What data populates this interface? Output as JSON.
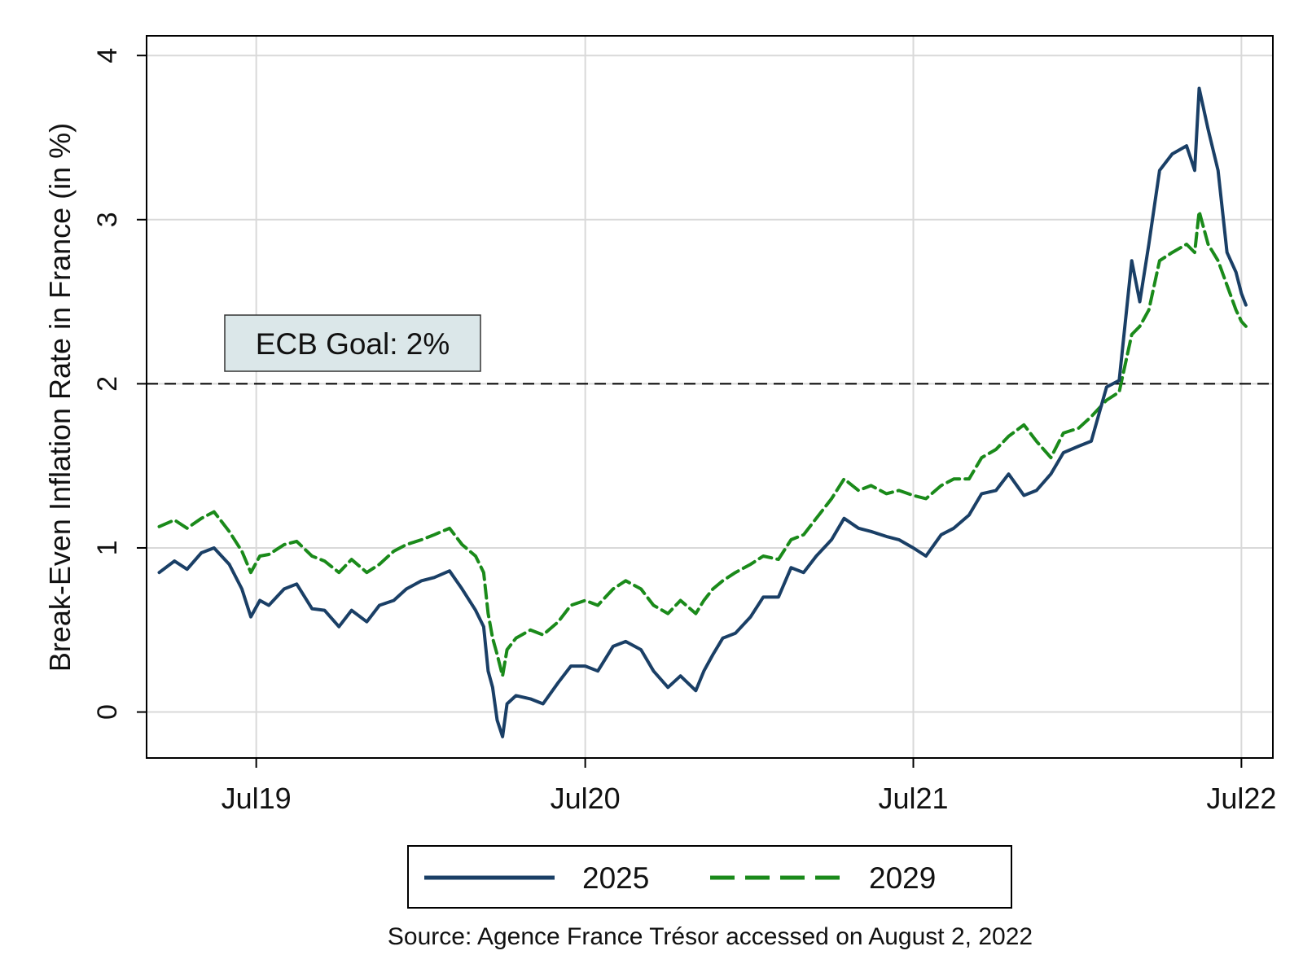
{
  "chart_data": {
    "type": "line",
    "title": "",
    "xlabel": "",
    "ylabel": "Break-Even Inflation Rate in France (in %)",
    "ylim": [
      -0.28,
      4.12
    ],
    "xlim": [
      "2019-03-01",
      "2022-08-05"
    ],
    "grid": true,
    "y_ticks": [
      "0",
      "1",
      "2",
      "3",
      "4"
    ],
    "x_ticks": [
      {
        "date": "2019-07-01",
        "label": "Jul19"
      },
      {
        "date": "2020-07-01",
        "label": "Jul20"
      },
      {
        "date": "2021-07-01",
        "label": "Jul21"
      },
      {
        "date": "2022-07-01",
        "label": "Jul22"
      }
    ],
    "reference_line": {
      "y": 2,
      "style": "dashed",
      "color": "#000000"
    },
    "annotation": {
      "text": "ECB Goal: 2%",
      "color": "#006400",
      "background": "#dbe7e9"
    },
    "legend": {
      "placement": "bottom",
      "entries": [
        "2025",
        "2029"
      ]
    },
    "source_note": "Source: Agence France Trésor accessed on August 2, 2022",
    "series": [
      {
        "name": "2025",
        "color": "#1a3f66",
        "style": "solid",
        "points": [
          [
            "2019-03-15",
            0.85
          ],
          [
            "2019-04-01",
            0.92
          ],
          [
            "2019-04-15",
            0.87
          ],
          [
            "2019-05-01",
            0.97
          ],
          [
            "2019-05-15",
            1.0
          ],
          [
            "2019-06-01",
            0.9
          ],
          [
            "2019-06-15",
            0.75
          ],
          [
            "2019-06-25",
            0.58
          ],
          [
            "2019-07-05",
            0.68
          ],
          [
            "2019-07-15",
            0.65
          ],
          [
            "2019-08-01",
            0.75
          ],
          [
            "2019-08-15",
            0.78
          ],
          [
            "2019-09-01",
            0.63
          ],
          [
            "2019-09-15",
            0.62
          ],
          [
            "2019-10-01",
            0.52
          ],
          [
            "2019-10-15",
            0.62
          ],
          [
            "2019-11-01",
            0.55
          ],
          [
            "2019-11-15",
            0.65
          ],
          [
            "2019-12-01",
            0.68
          ],
          [
            "2019-12-15",
            0.75
          ],
          [
            "2020-01-01",
            0.8
          ],
          [
            "2020-01-15",
            0.82
          ],
          [
            "2020-02-01",
            0.86
          ],
          [
            "2020-02-15",
            0.75
          ],
          [
            "2020-03-01",
            0.62
          ],
          [
            "2020-03-10",
            0.52
          ],
          [
            "2020-03-15",
            0.25
          ],
          [
            "2020-03-20",
            0.15
          ],
          [
            "2020-03-25",
            -0.05
          ],
          [
            "2020-03-31",
            -0.15
          ],
          [
            "2020-04-05",
            0.05
          ],
          [
            "2020-04-15",
            0.1
          ],
          [
            "2020-05-01",
            0.08
          ],
          [
            "2020-05-15",
            0.05
          ],
          [
            "2020-06-01",
            0.18
          ],
          [
            "2020-06-15",
            0.28
          ],
          [
            "2020-07-01",
            0.28
          ],
          [
            "2020-07-15",
            0.25
          ],
          [
            "2020-08-01",
            0.4
          ],
          [
            "2020-08-15",
            0.43
          ],
          [
            "2020-09-01",
            0.38
          ],
          [
            "2020-09-15",
            0.25
          ],
          [
            "2020-10-01",
            0.15
          ],
          [
            "2020-10-15",
            0.22
          ],
          [
            "2020-11-01",
            0.13
          ],
          [
            "2020-11-10",
            0.25
          ],
          [
            "2020-11-20",
            0.35
          ],
          [
            "2020-12-01",
            0.45
          ],
          [
            "2020-12-15",
            0.48
          ],
          [
            "2021-01-01",
            0.58
          ],
          [
            "2021-01-15",
            0.7
          ],
          [
            "2021-02-01",
            0.7
          ],
          [
            "2021-02-15",
            0.88
          ],
          [
            "2021-03-01",
            0.85
          ],
          [
            "2021-03-15",
            0.95
          ],
          [
            "2021-04-01",
            1.05
          ],
          [
            "2021-04-15",
            1.18
          ],
          [
            "2021-05-01",
            1.12
          ],
          [
            "2021-05-15",
            1.1
          ],
          [
            "2021-06-01",
            1.07
          ],
          [
            "2021-06-15",
            1.05
          ],
          [
            "2021-07-01",
            1.0
          ],
          [
            "2021-07-15",
            0.95
          ],
          [
            "2021-08-01",
            1.08
          ],
          [
            "2021-08-15",
            1.12
          ],
          [
            "2021-09-01",
            1.2
          ],
          [
            "2021-09-15",
            1.33
          ],
          [
            "2021-10-01",
            1.35
          ],
          [
            "2021-10-15",
            1.45
          ],
          [
            "2021-11-01",
            1.32
          ],
          [
            "2021-11-15",
            1.35
          ],
          [
            "2021-12-01",
            1.45
          ],
          [
            "2021-12-15",
            1.58
          ],
          [
            "2022-01-01",
            1.62
          ],
          [
            "2022-01-15",
            1.65
          ],
          [
            "2022-02-01",
            1.98
          ],
          [
            "2022-02-15",
            2.02
          ],
          [
            "2022-03-01",
            2.75
          ],
          [
            "2022-03-10",
            2.5
          ],
          [
            "2022-03-20",
            2.85
          ],
          [
            "2022-04-01",
            3.3
          ],
          [
            "2022-04-15",
            3.4
          ],
          [
            "2022-05-01",
            3.45
          ],
          [
            "2022-05-10",
            3.3
          ],
          [
            "2022-05-15",
            3.8
          ],
          [
            "2022-05-25",
            3.55
          ],
          [
            "2022-06-05",
            3.3
          ],
          [
            "2022-06-15",
            2.8
          ],
          [
            "2022-06-25",
            2.68
          ],
          [
            "2022-07-01",
            2.55
          ],
          [
            "2022-07-06",
            2.48
          ]
        ]
      },
      {
        "name": "2029",
        "color": "#1a8a1a",
        "style": "dashed",
        "points": [
          [
            "2019-03-15",
            1.13
          ],
          [
            "2019-04-01",
            1.17
          ],
          [
            "2019-04-15",
            1.12
          ],
          [
            "2019-05-01",
            1.18
          ],
          [
            "2019-05-15",
            1.22
          ],
          [
            "2019-06-01",
            1.1
          ],
          [
            "2019-06-15",
            0.98
          ],
          [
            "2019-06-25",
            0.85
          ],
          [
            "2019-07-05",
            0.95
          ],
          [
            "2019-07-15",
            0.96
          ],
          [
            "2019-08-01",
            1.02
          ],
          [
            "2019-08-15",
            1.04
          ],
          [
            "2019-09-01",
            0.95
          ],
          [
            "2019-09-15",
            0.92
          ],
          [
            "2019-10-01",
            0.85
          ],
          [
            "2019-10-15",
            0.93
          ],
          [
            "2019-11-01",
            0.85
          ],
          [
            "2019-11-15",
            0.9
          ],
          [
            "2019-12-01",
            0.98
          ],
          [
            "2019-12-15",
            1.02
          ],
          [
            "2020-01-01",
            1.05
          ],
          [
            "2020-01-15",
            1.08
          ],
          [
            "2020-02-01",
            1.12
          ],
          [
            "2020-02-15",
            1.02
          ],
          [
            "2020-03-01",
            0.95
          ],
          [
            "2020-03-10",
            0.85
          ],
          [
            "2020-03-15",
            0.6
          ],
          [
            "2020-03-20",
            0.45
          ],
          [
            "2020-03-25",
            0.35
          ],
          [
            "2020-03-31",
            0.22
          ],
          [
            "2020-04-05",
            0.38
          ],
          [
            "2020-04-15",
            0.45
          ],
          [
            "2020-05-01",
            0.5
          ],
          [
            "2020-05-15",
            0.47
          ],
          [
            "2020-06-01",
            0.55
          ],
          [
            "2020-06-15",
            0.65
          ],
          [
            "2020-07-01",
            0.68
          ],
          [
            "2020-07-15",
            0.65
          ],
          [
            "2020-08-01",
            0.75
          ],
          [
            "2020-08-15",
            0.8
          ],
          [
            "2020-09-01",
            0.75
          ],
          [
            "2020-09-15",
            0.65
          ],
          [
            "2020-10-01",
            0.6
          ],
          [
            "2020-10-15",
            0.68
          ],
          [
            "2020-11-01",
            0.6
          ],
          [
            "2020-11-10",
            0.68
          ],
          [
            "2020-11-20",
            0.75
          ],
          [
            "2020-12-01",
            0.8
          ],
          [
            "2020-12-15",
            0.85
          ],
          [
            "2021-01-01",
            0.9
          ],
          [
            "2021-01-15",
            0.95
          ],
          [
            "2021-02-01",
            0.93
          ],
          [
            "2021-02-15",
            1.05
          ],
          [
            "2021-03-01",
            1.08
          ],
          [
            "2021-03-15",
            1.18
          ],
          [
            "2021-04-01",
            1.3
          ],
          [
            "2021-04-15",
            1.42
          ],
          [
            "2021-05-01",
            1.35
          ],
          [
            "2021-05-15",
            1.38
          ],
          [
            "2021-06-01",
            1.33
          ],
          [
            "2021-06-15",
            1.35
          ],
          [
            "2021-07-01",
            1.32
          ],
          [
            "2021-07-15",
            1.3
          ],
          [
            "2021-08-01",
            1.38
          ],
          [
            "2021-08-15",
            1.42
          ],
          [
            "2021-09-01",
            1.42
          ],
          [
            "2021-09-15",
            1.55
          ],
          [
            "2021-10-01",
            1.6
          ],
          [
            "2021-10-15",
            1.68
          ],
          [
            "2021-11-01",
            1.75
          ],
          [
            "2021-11-15",
            1.65
          ],
          [
            "2021-12-01",
            1.55
          ],
          [
            "2021-12-15",
            1.7
          ],
          [
            "2022-01-01",
            1.73
          ],
          [
            "2022-01-15",
            1.8
          ],
          [
            "2022-02-01",
            1.9
          ],
          [
            "2022-02-15",
            1.95
          ],
          [
            "2022-03-01",
            2.3
          ],
          [
            "2022-03-10",
            2.35
          ],
          [
            "2022-03-20",
            2.45
          ],
          [
            "2022-04-01",
            2.75
          ],
          [
            "2022-04-15",
            2.8
          ],
          [
            "2022-05-01",
            2.85
          ],
          [
            "2022-05-10",
            2.8
          ],
          [
            "2022-05-15",
            3.05
          ],
          [
            "2022-05-25",
            2.85
          ],
          [
            "2022-06-05",
            2.75
          ],
          [
            "2022-06-15",
            2.6
          ],
          [
            "2022-06-25",
            2.45
          ],
          [
            "2022-07-01",
            2.38
          ],
          [
            "2022-07-06",
            2.35
          ]
        ]
      }
    ]
  }
}
